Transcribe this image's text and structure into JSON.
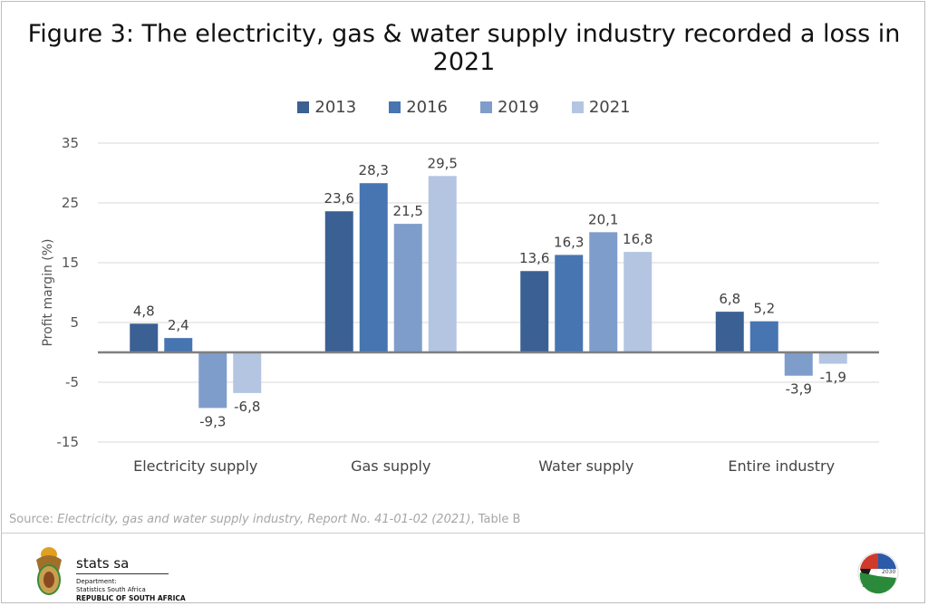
{
  "chart_data": {
    "type": "bar",
    "title": "Figure 3: The electricity, gas & water supply industry recorded a loss in 2021",
    "categories": [
      "Electricity supply",
      "Gas supply",
      "Water supply",
      "Entire industry"
    ],
    "series": [
      {
        "name": "2013",
        "color": "#3b6093",
        "values": [
          4.8,
          23.6,
          13.6,
          6.8
        ],
        "labels": [
          "4,8",
          "23,6",
          "13,6",
          "6,8"
        ]
      },
      {
        "name": "2016",
        "color": "#4675b1",
        "values": [
          2.4,
          28.3,
          16.3,
          5.2
        ],
        "labels": [
          "2,4",
          "28,3",
          "16,3",
          "5,2"
        ]
      },
      {
        "name": "2019",
        "color": "#7f9dcb",
        "values": [
          -9.3,
          21.5,
          20.1,
          -3.9
        ],
        "labels": [
          "-9,3",
          "21,5",
          "20,1",
          "-3,9"
        ]
      },
      {
        "name": "2021",
        "color": "#b4c5e2",
        "values": [
          -6.8,
          29.5,
          16.8,
          -1.9
        ],
        "labels": [
          "-6,8",
          "29,5",
          "16,8",
          "-1,9"
        ]
      }
    ],
    "xlabel": "",
    "ylabel": "Profit margin (%)",
    "ylim": [
      -15,
      35
    ],
    "yticks": [
      35,
      25,
      15,
      5,
      -5,
      -15
    ],
    "grid": true,
    "legend_position": "top"
  },
  "source": {
    "prefix": "Source: ",
    "title": "Electricity, gas and water supply industry, Report No. 41-01-02 (2021)",
    "suffix": ", Table B"
  },
  "footer": {
    "org_name": "stats sa",
    "dept_line1": "Department:",
    "dept_line2": "Statistics South Africa",
    "country": "REPUBLIC OF SOUTH AFRICA",
    "ndp_logo": "NDP 2030"
  }
}
